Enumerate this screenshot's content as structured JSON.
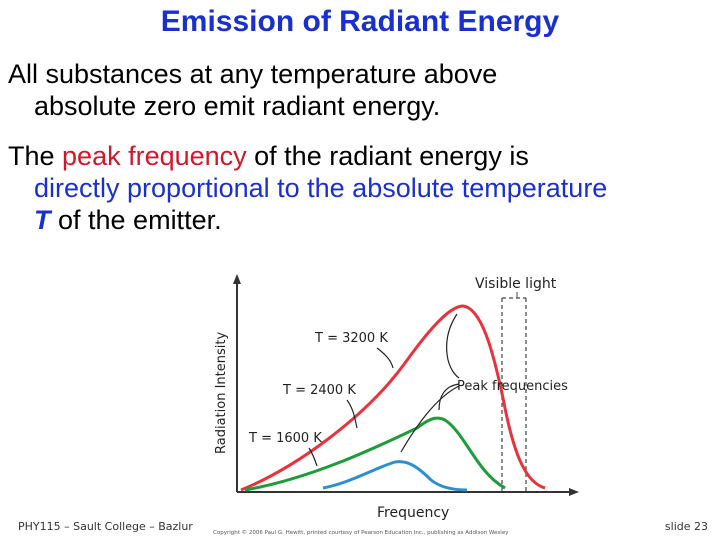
{
  "slide": {
    "title": "Emission of Radiant Energy",
    "bullet1": {
      "line1": "All substances at any temperature above",
      "line2": "absolute zero emit radiant energy."
    },
    "bullet2": {
      "part1": "The ",
      "highlight_red": "peak frequency",
      "part2": " of the radiant energy is",
      "blue_line": "directly proportional to the absolute temperature",
      "T": "T",
      "end": " of the emitter."
    },
    "footer_left": "PHY115 – Sault College – Bazlur",
    "footer_right": "slide 23"
  },
  "figure": {
    "y_axis_label": "Radiation Intensity",
    "x_axis_label": "Frequency",
    "visible_light_label": "Visible light",
    "peak_label": "Peak frequencies",
    "curve_labels": [
      "T = 3200 K",
      "T = 2400 K",
      "T = 1600 K"
    ],
    "copyright": "Copyright © 2006 Paul G. Hewitt, printed courtesy of Pearson Education Inc., publishing as Addison Wesley",
    "colors": {
      "hot": "#e8323c",
      "mid": "#1e9c3a",
      "cool": "#2e8fd0",
      "axis": "#333333"
    }
  }
}
